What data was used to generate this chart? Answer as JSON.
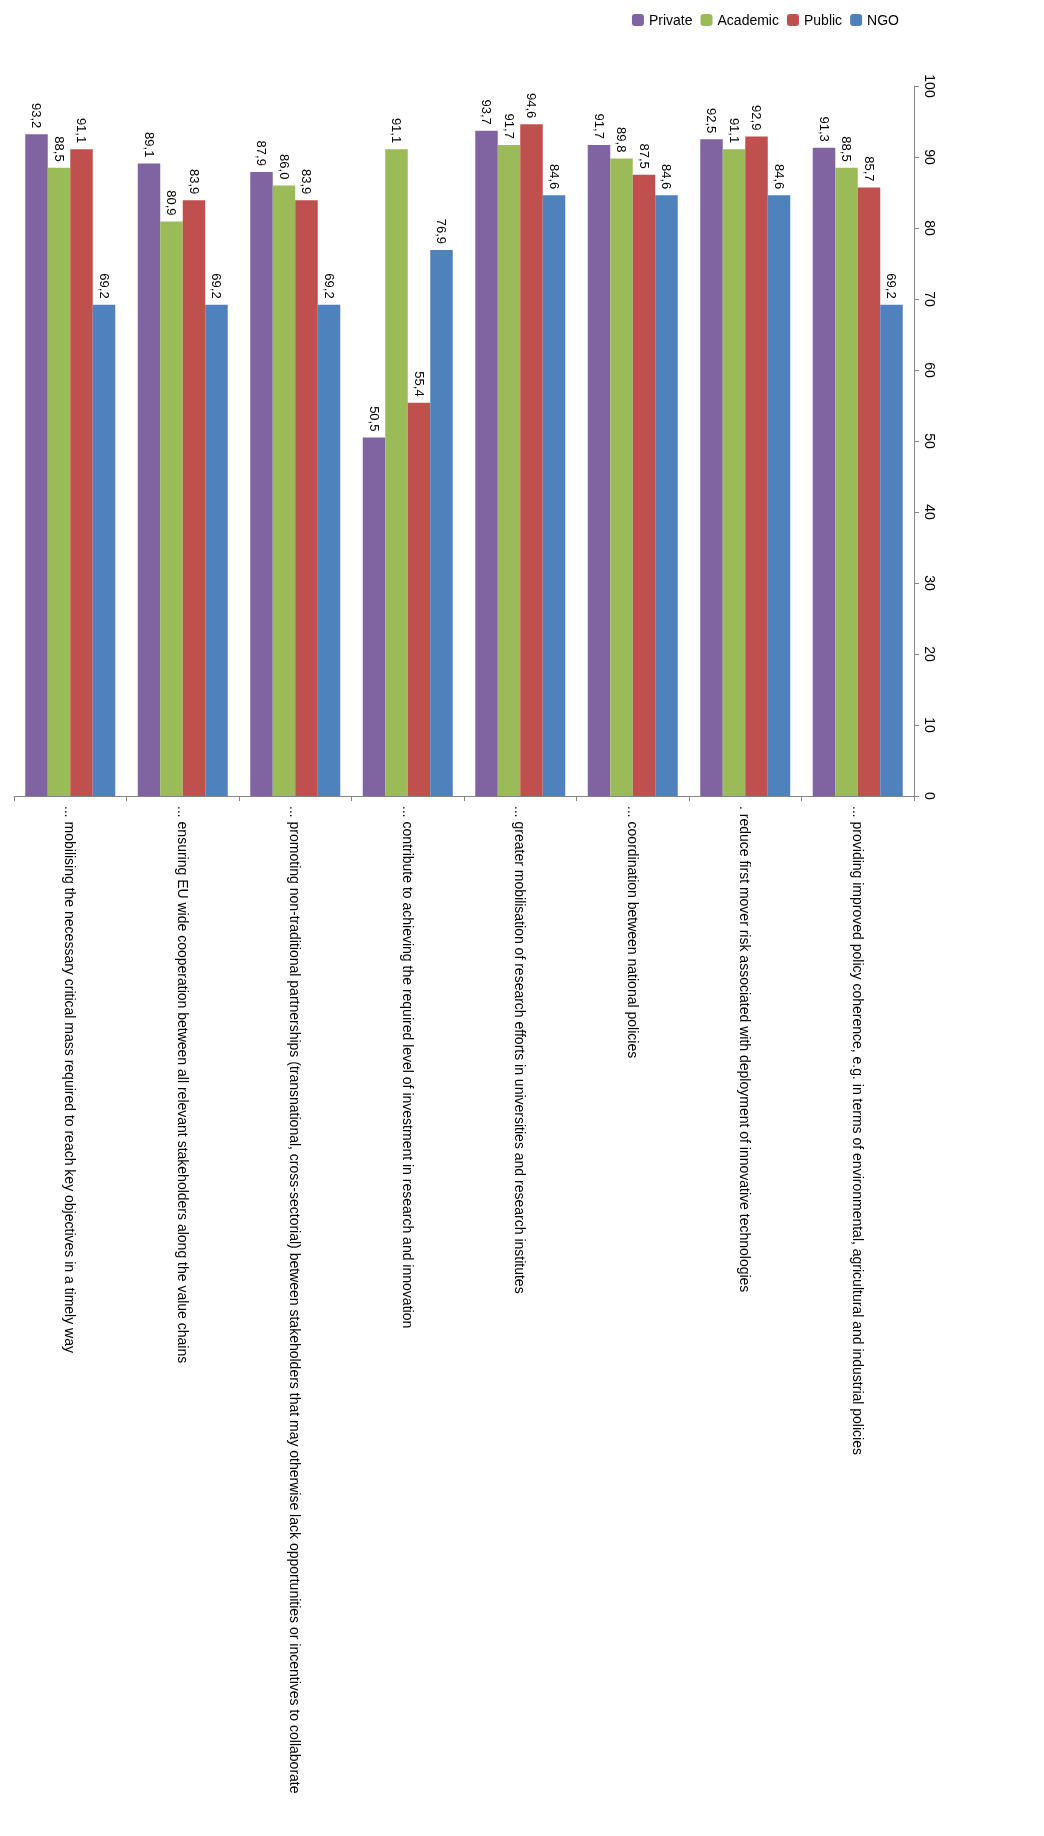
{
  "chart_data": {
    "type": "bar",
    "categories": [
      "... mobilising the necessary critical mass required to reach key objectives in a timely way",
      "... ensuring EU wide cooperation between all relevant stakeholders along the value chains",
      "... promoting non-traditional partnerships (transnational, cross-sectorial) between stakeholders that may otherwise lack opportunities or incentives to collaborate",
      "... contribute to achieving the required level of investment in research and innovation",
      "... greater mobilisation of research efforts in universities and research institutes",
      "... coordination between national policies",
      ". reduce first mover risk associated with deployment of innovative technologies",
      "... providing improved policy coherence, e.g. in terms of environmental, agricultural and industrial policies"
    ],
    "series": [
      {
        "name": "Private",
        "color": "#8064a2",
        "values": [
          93.2,
          89.1,
          87.9,
          50.5,
          93.7,
          91.7,
          92.5,
          91.3
        ],
        "value_labels": [
          "93,2",
          "89,1",
          "87,9",
          "50,5",
          "93,7",
          "91,7",
          "92,5",
          "91,3"
        ]
      },
      {
        "name": "Academic",
        "color": "#9bbb59",
        "values": [
          88.5,
          80.9,
          86.0,
          91.1,
          91.7,
          89.8,
          91.1,
          88.5
        ],
        "value_labels": [
          "88,5",
          "80,9",
          "86,0",
          "91,1",
          "91,7",
          "89,8",
          "91,1",
          "88,5"
        ]
      },
      {
        "name": "Public",
        "color": "#c0504d",
        "values": [
          91.1,
          83.9,
          83.9,
          55.4,
          94.6,
          87.5,
          92.9,
          85.7
        ],
        "value_labels": [
          "91,1",
          "83,9",
          "83,9",
          "55,4",
          "94,6",
          "87,5",
          "92,9",
          "85,7"
        ]
      },
      {
        "name": "NGO",
        "color": "#4f81bd",
        "values": [
          69.2,
          69.2,
          69.2,
          76.9,
          84.6,
          84.6,
          84.6,
          69.2
        ],
        "value_labels": [
          "69,2",
          "69,2",
          "69,2",
          "76,9",
          "84,6",
          "84,6",
          "84,6",
          "69,2"
        ]
      }
    ],
    "ylim": [
      0,
      100
    ],
    "yticks": [
      0,
      10,
      20,
      30,
      40,
      50,
      60,
      70,
      80,
      90,
      100
    ],
    "grid": false,
    "legend": "top right"
  }
}
